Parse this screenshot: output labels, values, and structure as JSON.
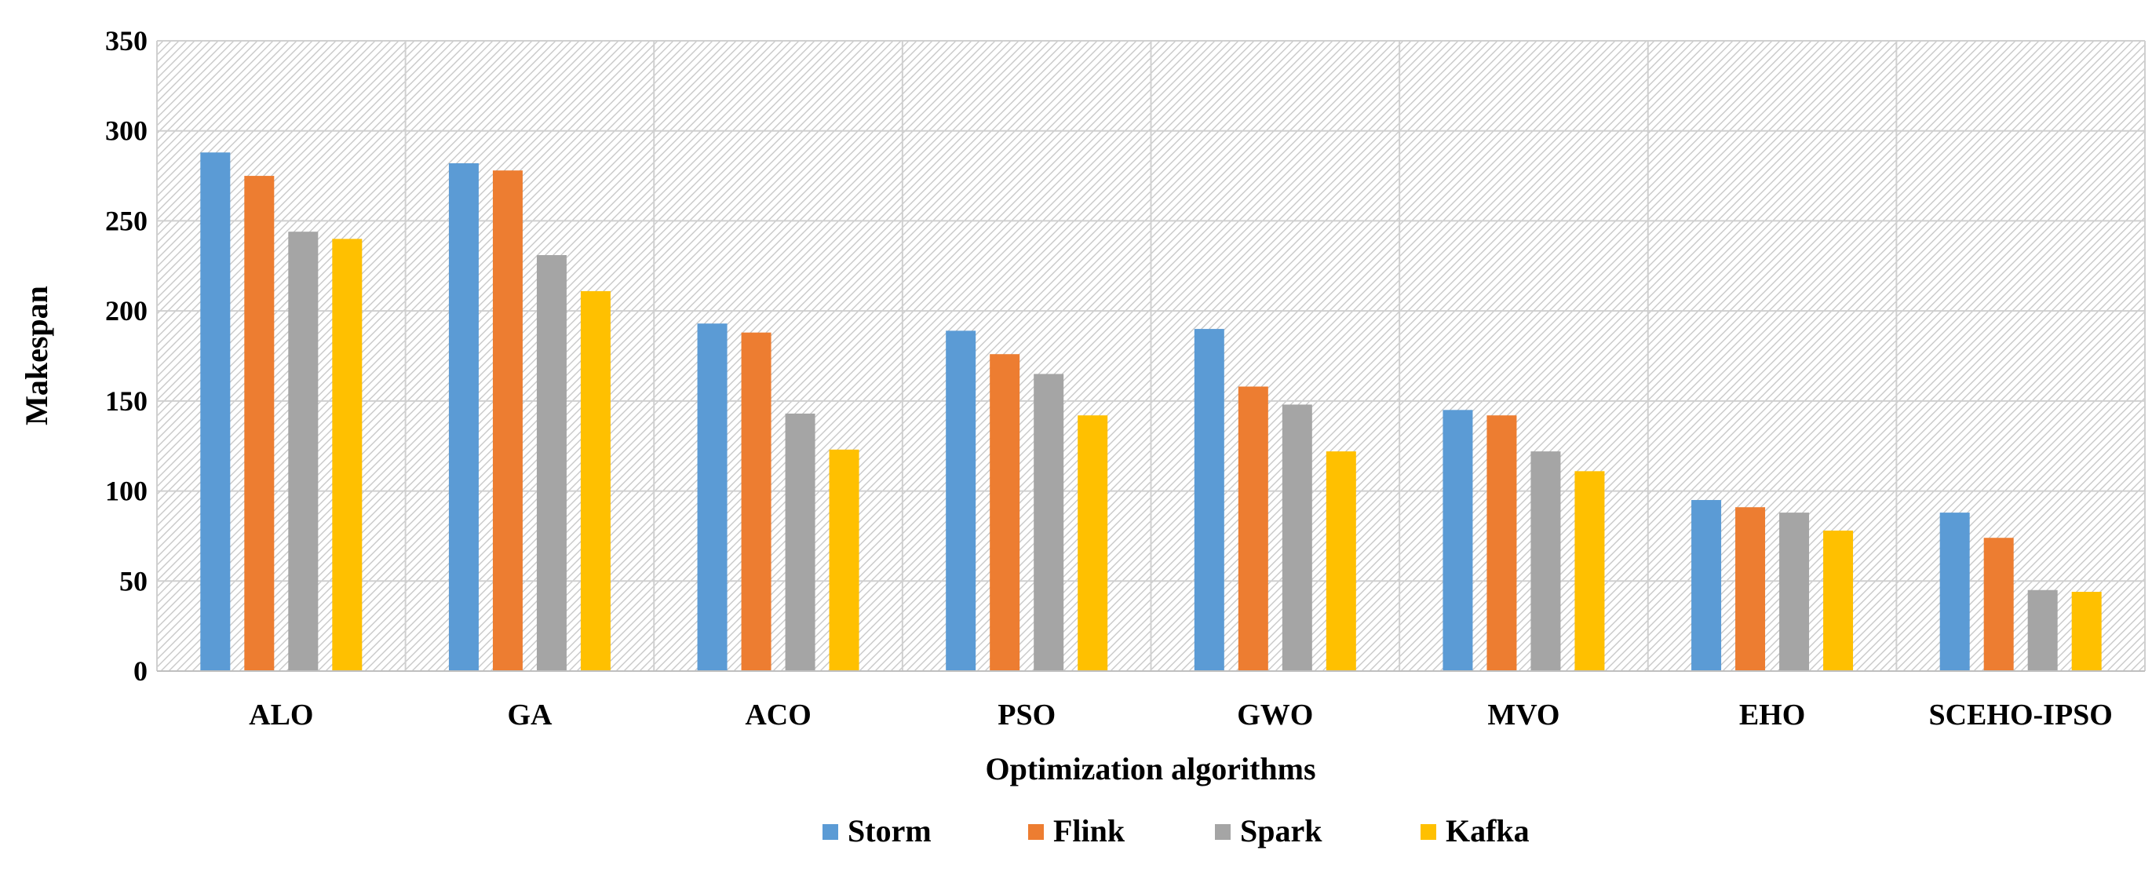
{
  "chart_data": {
    "type": "bar",
    "title": "",
    "xlabel": "Optimization algorithms",
    "ylabel": "Makespan",
    "ylim": [
      0,
      350
    ],
    "yticks": [
      0,
      50,
      100,
      150,
      200,
      250,
      300,
      350
    ],
    "grid": true,
    "legend_position": "bottom",
    "categories": [
      "ALO",
      "GA",
      "ACO",
      "PSO",
      "GWO",
      "MVO",
      "EHO",
      "SCEHO-IPSO"
    ],
    "series": [
      {
        "name": "Storm",
        "color": "#5B9BD5",
        "values": [
          288,
          282,
          193,
          189,
          190,
          145,
          95,
          88
        ]
      },
      {
        "name": "Flink",
        "color": "#ED7D31",
        "values": [
          275,
          278,
          188,
          176,
          158,
          142,
          91,
          74
        ]
      },
      {
        "name": "Spark",
        "color": "#A5A5A5",
        "values": [
          244,
          231,
          143,
          165,
          148,
          122,
          88,
          45
        ]
      },
      {
        "name": "Kafka",
        "color": "#FFC000",
        "values": [
          240,
          211,
          123,
          142,
          122,
          111,
          78,
          44
        ]
      }
    ]
  }
}
